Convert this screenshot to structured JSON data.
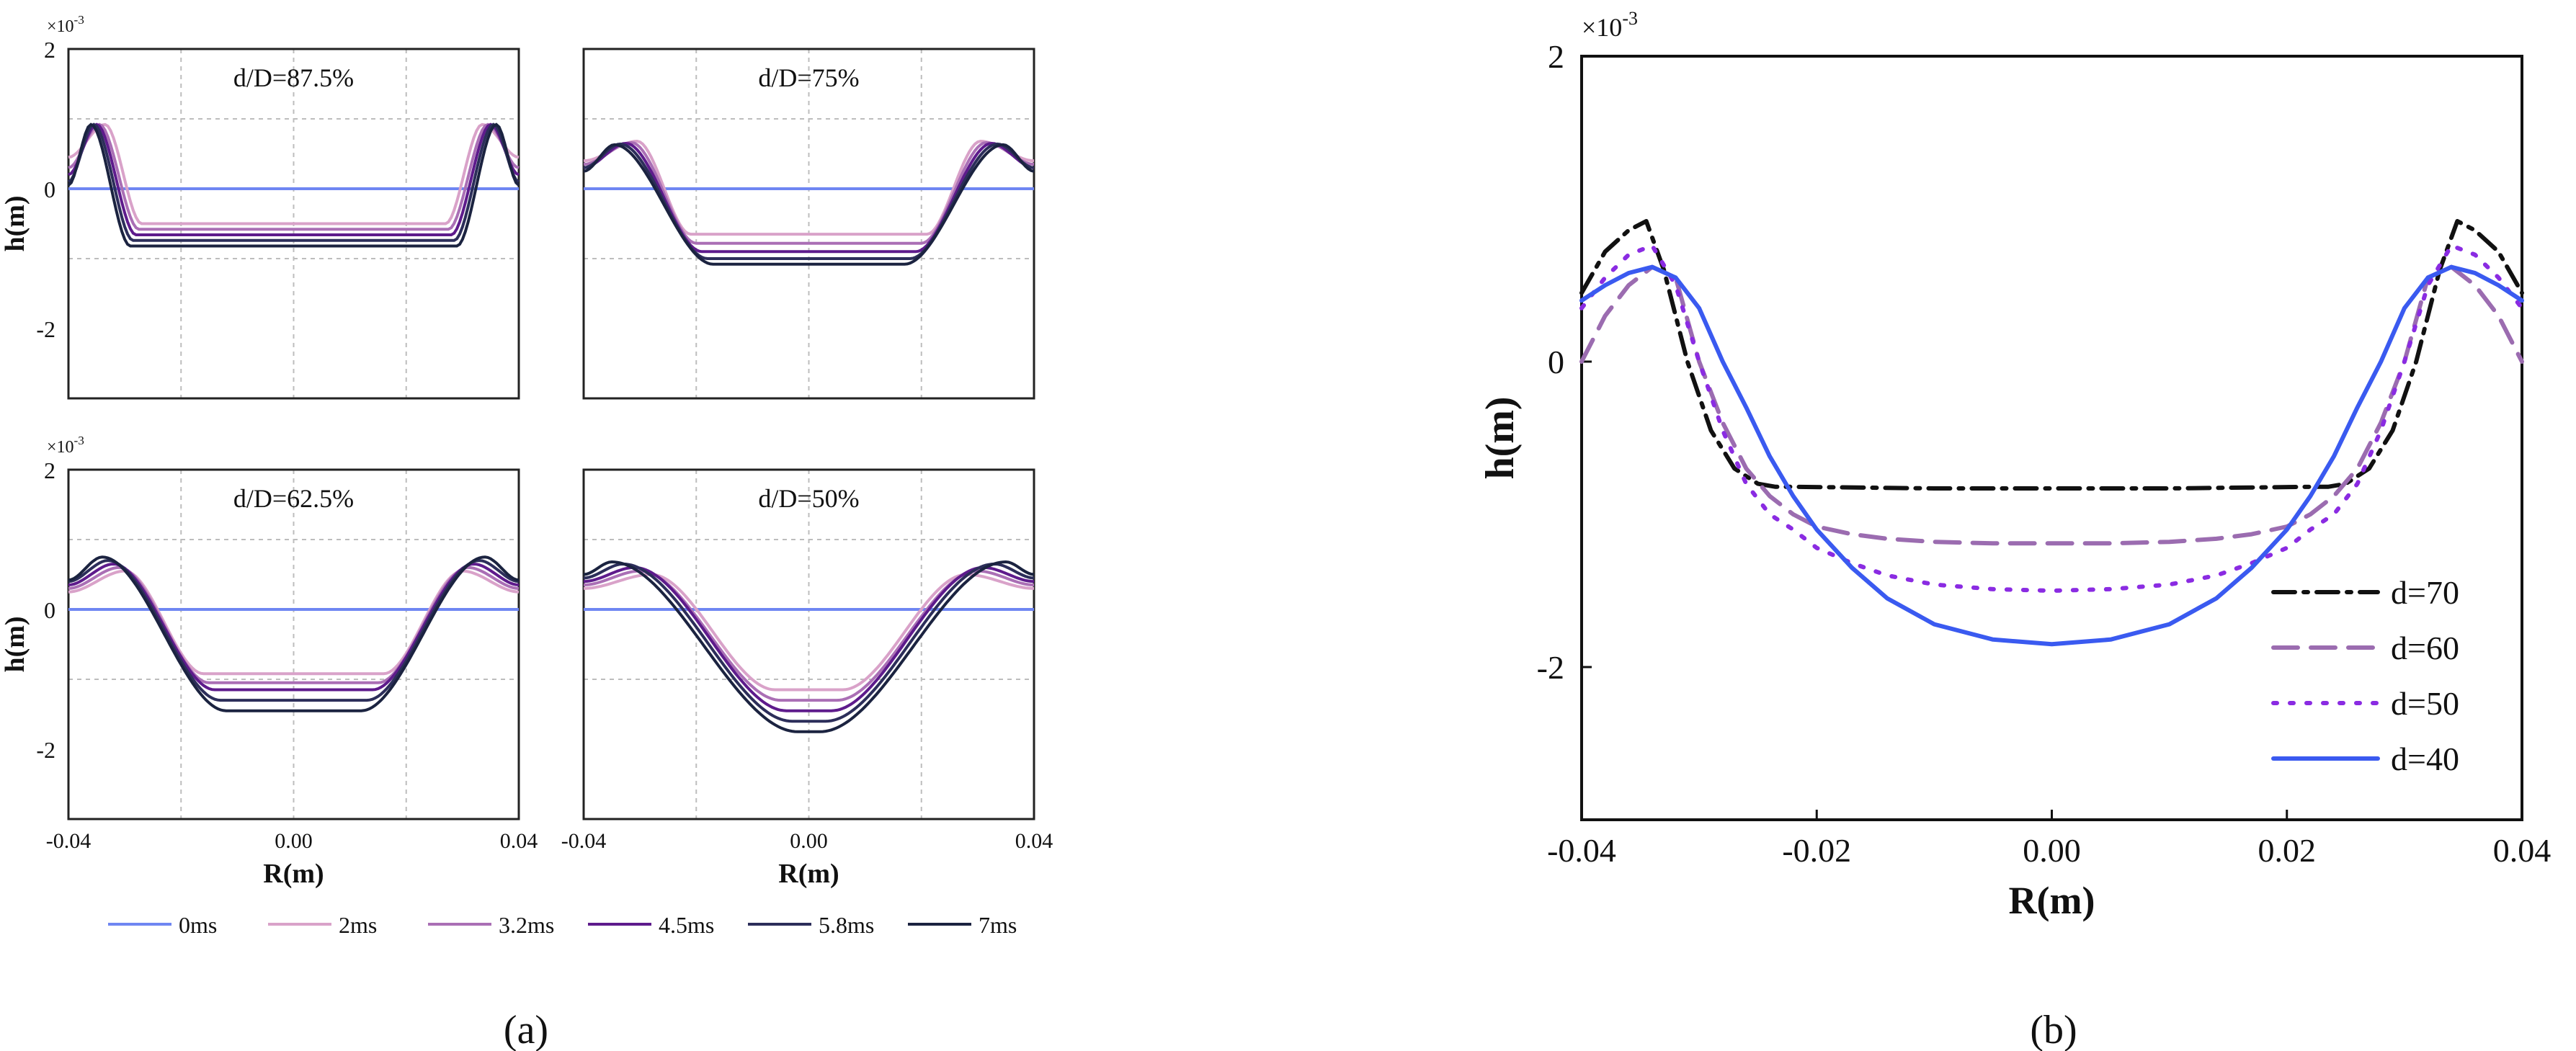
{
  "figure": {
    "panel_a_caption": "(a)",
    "panel_b_caption": "(b)"
  },
  "chart_data": [
    {
      "type": "line",
      "panel": "a",
      "xlabel": "R(m)",
      "ylabel": "h(m)",
      "y_exponent": "×10-3",
      "xlim": [
        -0.04,
        0.04
      ],
      "ylim": [
        -3,
        2
      ],
      "xticks": [
        -0.04,
        0.0,
        0.04
      ],
      "xtick_labels": [
        "-0.04",
        "0.00",
        "0.04"
      ],
      "yticks": [
        2,
        0,
        -2
      ],
      "ytick_labels": [
        "2",
        "0",
        "-2"
      ],
      "grid": true,
      "legend": {
        "placement": "bottom",
        "entries": [
          {
            "label": "0ms",
            "color": "#6f86f2"
          },
          {
            "label": "2ms",
            "color": "#d9a2c9"
          },
          {
            "label": "3.2ms",
            "color": "#aa6fb5"
          },
          {
            "label": "4.5ms",
            "color": "#5e1b8c"
          },
          {
            "label": "5.8ms",
            "color": "#2c2e5a"
          },
          {
            "label": "7ms",
            "color": "#1b2340"
          }
        ]
      },
      "subplots": [
        {
          "title": "d/D=87.5%",
          "series": [
            {
              "name": "0ms",
              "profile": {
                "peak_r": 0.0,
                "peak_h": 0.0,
                "floor": 0.0,
                "flat_r": 0.0,
                "edge_h": 0.0
              }
            },
            {
              "name": "2ms",
              "profile": {
                "peak_r": 0.0335,
                "peak_h": 0.92,
                "floor": -0.5,
                "flat_r": 0.027,
                "edge_h": 0.45
              }
            },
            {
              "name": "3.2ms",
              "profile": {
                "peak_r": 0.0345,
                "peak_h": 0.92,
                "floor": -0.58,
                "flat_r": 0.0275,
                "edge_h": 0.3
              }
            },
            {
              "name": "4.5ms",
              "profile": {
                "peak_r": 0.035,
                "peak_h": 0.92,
                "floor": -0.66,
                "flat_r": 0.028,
                "edge_h": 0.2
              }
            },
            {
              "name": "5.8ms",
              "profile": {
                "peak_r": 0.0355,
                "peak_h": 0.92,
                "floor": -0.74,
                "flat_r": 0.0285,
                "edge_h": 0.1
              }
            },
            {
              "name": "7ms",
              "profile": {
                "peak_r": 0.036,
                "peak_h": 0.92,
                "floor": -0.82,
                "flat_r": 0.029,
                "edge_h": 0.05
              }
            }
          ]
        },
        {
          "title": "d/D=75%",
          "series": [
            {
              "name": "0ms",
              "profile": {
                "peak_r": 0.0,
                "peak_h": 0.0,
                "floor": 0.0,
                "flat_r": 0.0,
                "edge_h": 0.0
              }
            },
            {
              "name": "2ms",
              "profile": {
                "peak_r": 0.0305,
                "peak_h": 0.68,
                "floor": -0.65,
                "flat_r": 0.021,
                "edge_h": 0.4
              }
            },
            {
              "name": "3.2ms",
              "profile": {
                "peak_r": 0.0315,
                "peak_h": 0.66,
                "floor": -0.78,
                "flat_r": 0.02,
                "edge_h": 0.35
              }
            },
            {
              "name": "4.5ms",
              "profile": {
                "peak_r": 0.0325,
                "peak_h": 0.65,
                "floor": -0.9,
                "flat_r": 0.019,
                "edge_h": 0.3
              }
            },
            {
              "name": "5.8ms",
              "profile": {
                "peak_r": 0.0335,
                "peak_h": 0.64,
                "floor": -1.0,
                "flat_r": 0.018,
                "edge_h": 0.3
              }
            },
            {
              "name": "7ms",
              "profile": {
                "peak_r": 0.0345,
                "peak_h": 0.63,
                "floor": -1.08,
                "flat_r": 0.017,
                "edge_h": 0.25
              }
            }
          ]
        },
        {
          "title": "d/D=62.5%",
          "series": [
            {
              "name": "0ms",
              "profile": {
                "peak_r": 0.0,
                "peak_h": 0.0,
                "floor": 0.0,
                "flat_r": 0.0,
                "edge_h": 0.0
              }
            },
            {
              "name": "2ms",
              "profile": {
                "peak_r": 0.03,
                "peak_h": 0.55,
                "floor": -0.92,
                "flat_r": 0.016,
                "edge_h": 0.25
              }
            },
            {
              "name": "3.2ms",
              "profile": {
                "peak_r": 0.031,
                "peak_h": 0.6,
                "floor": -1.05,
                "flat_r": 0.015,
                "edge_h": 0.3
              }
            },
            {
              "name": "4.5ms",
              "profile": {
                "peak_r": 0.032,
                "peak_h": 0.65,
                "floor": -1.15,
                "flat_r": 0.014,
                "edge_h": 0.35
              }
            },
            {
              "name": "5.8ms",
              "profile": {
                "peak_r": 0.033,
                "peak_h": 0.7,
                "floor": -1.3,
                "flat_r": 0.013,
                "edge_h": 0.4
              }
            },
            {
              "name": "7ms",
              "profile": {
                "peak_r": 0.034,
                "peak_h": 0.75,
                "floor": -1.45,
                "flat_r": 0.012,
                "edge_h": 0.42
              }
            }
          ]
        },
        {
          "title": "d/D=50%",
          "series": [
            {
              "name": "0ms",
              "profile": {
                "peak_r": 0.0,
                "peak_h": 0.0,
                "floor": 0.0,
                "flat_r": 0.0,
                "edge_h": 0.0
              }
            },
            {
              "name": "2ms",
              "profile": {
                "peak_r": 0.028,
                "peak_h": 0.5,
                "floor": -1.15,
                "flat_r": 0.006,
                "edge_h": 0.3
              }
            },
            {
              "name": "3.2ms",
              "profile": {
                "peak_r": 0.03,
                "peak_h": 0.55,
                "floor": -1.3,
                "flat_r": 0.005,
                "edge_h": 0.35
              }
            },
            {
              "name": "4.5ms",
              "profile": {
                "peak_r": 0.031,
                "peak_h": 0.6,
                "floor": -1.45,
                "flat_r": 0.004,
                "edge_h": 0.4
              }
            },
            {
              "name": "5.8ms",
              "profile": {
                "peak_r": 0.033,
                "peak_h": 0.65,
                "floor": -1.6,
                "flat_r": 0.003,
                "edge_h": 0.45
              }
            },
            {
              "name": "7ms",
              "profile": {
                "peak_r": 0.035,
                "peak_h": 0.68,
                "floor": -1.75,
                "flat_r": 0.002,
                "edge_h": 0.5
              }
            }
          ]
        }
      ]
    },
    {
      "type": "line",
      "panel": "b",
      "xlabel": "R(m)",
      "ylabel": "h(m)",
      "y_exponent": "×10-3",
      "xlim": [
        -0.04,
        0.04
      ],
      "ylim": [
        -3,
        2
      ],
      "xticks": [
        -0.04,
        -0.02,
        0.0,
        0.02,
        0.04
      ],
      "xtick_labels": [
        "-0.04",
        "-0.02",
        "0.00",
        "0.02",
        "0.04"
      ],
      "yticks": [
        2,
        0,
        -2
      ],
      "ytick_labels": [
        "2",
        "0",
        "-2"
      ],
      "grid": false,
      "legend": {
        "placement": "bottom-right"
      },
      "series": [
        {
          "name": "d=70",
          "color": "#111111",
          "dash": "dashdot",
          "x": [
            -0.04,
            -0.038,
            -0.036,
            -0.0345,
            -0.033,
            -0.031,
            -0.029,
            -0.027,
            -0.025,
            -0.0235,
            -0.022,
            -0.01,
            0.0,
            0.01,
            0.022,
            0.0235,
            0.025,
            0.027,
            0.029,
            0.031,
            0.033,
            0.0345,
            0.036,
            0.038,
            0.04
          ],
          "y": [
            0.45,
            0.72,
            0.86,
            0.92,
            0.6,
            0.0,
            -0.45,
            -0.7,
            -0.8,
            -0.82,
            -0.82,
            -0.83,
            -0.83,
            -0.83,
            -0.82,
            -0.82,
            -0.8,
            -0.7,
            -0.45,
            0.0,
            0.6,
            0.92,
            0.86,
            0.72,
            0.45
          ]
        },
        {
          "name": "d=60",
          "color": "#9b6cb0",
          "dash": "dashed",
          "x": [
            -0.04,
            -0.038,
            -0.036,
            -0.034,
            -0.032,
            -0.03,
            -0.028,
            -0.026,
            -0.024,
            -0.022,
            -0.02,
            -0.017,
            -0.014,
            -0.01,
            -0.005,
            0.0,
            0.005,
            0.01,
            0.014,
            0.017,
            0.02,
            0.022,
            0.024,
            0.026,
            0.028,
            0.03,
            0.032,
            0.034,
            0.036,
            0.038,
            0.04
          ],
          "y": [
            0.0,
            0.3,
            0.5,
            0.62,
            0.55,
            0.0,
            -0.4,
            -0.7,
            -0.88,
            -1.0,
            -1.08,
            -1.13,
            -1.16,
            -1.18,
            -1.19,
            -1.19,
            -1.19,
            -1.18,
            -1.16,
            -1.13,
            -1.08,
            -1.0,
            -0.88,
            -0.7,
            -0.4,
            0.0,
            0.55,
            0.62,
            0.5,
            0.3,
            0.0
          ]
        },
        {
          "name": "d=50",
          "color": "#8a2be2",
          "dash": "dotted",
          "x": [
            -0.04,
            -0.038,
            -0.036,
            -0.034,
            -0.032,
            -0.03,
            -0.028,
            -0.026,
            -0.024,
            -0.022,
            -0.02,
            -0.017,
            -0.014,
            -0.01,
            -0.005,
            0.0,
            0.005,
            0.01,
            0.014,
            0.017,
            0.02,
            0.022,
            0.024,
            0.026,
            0.028,
            0.03,
            0.032,
            0.034,
            0.036,
            0.038,
            0.04
          ],
          "y": [
            0.35,
            0.55,
            0.7,
            0.76,
            0.5,
            0.0,
            -0.45,
            -0.8,
            -1.0,
            -1.1,
            -1.22,
            -1.32,
            -1.4,
            -1.46,
            -1.49,
            -1.5,
            -1.49,
            -1.46,
            -1.4,
            -1.32,
            -1.22,
            -1.1,
            -1.0,
            -0.8,
            -0.45,
            0.0,
            0.5,
            0.76,
            0.7,
            0.55,
            0.35
          ]
        },
        {
          "name": "d=40",
          "color": "#3a5af0",
          "dash": "solid",
          "x": [
            -0.04,
            -0.038,
            -0.036,
            -0.034,
            -0.032,
            -0.03,
            -0.028,
            -0.026,
            -0.024,
            -0.022,
            -0.02,
            -0.017,
            -0.014,
            -0.01,
            -0.005,
            0.0,
            0.005,
            0.01,
            0.014,
            0.017,
            0.02,
            0.022,
            0.024,
            0.026,
            0.028,
            0.03,
            0.032,
            0.034,
            0.036,
            0.038,
            0.04
          ],
          "y": [
            0.4,
            0.5,
            0.58,
            0.62,
            0.55,
            0.35,
            0.0,
            -0.3,
            -0.62,
            -0.88,
            -1.1,
            -1.35,
            -1.55,
            -1.72,
            -1.82,
            -1.85,
            -1.82,
            -1.72,
            -1.55,
            -1.35,
            -1.1,
            -0.88,
            -0.62,
            -0.3,
            0.0,
            0.35,
            0.55,
            0.62,
            0.58,
            0.5,
            0.4
          ]
        }
      ]
    }
  ]
}
